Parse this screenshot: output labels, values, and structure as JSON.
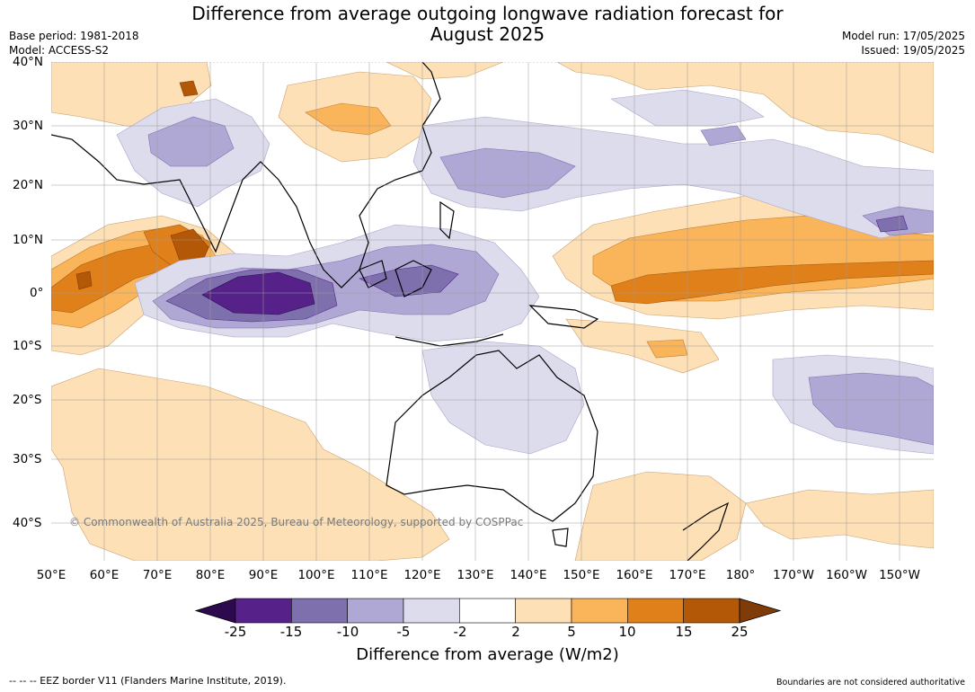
{
  "header": {
    "title_line1": "Difference from average outgoing longwave radiation forecast for",
    "title_line2": "August 2025",
    "base_period": "Base period: 1981-2018",
    "model": "Model: ACCESS-S2",
    "model_run": "Model run: 17/05/2025",
    "issued": "Issued: 19/05/2025"
  },
  "map": {
    "lat_labels": [
      "40°N",
      "30°N",
      "20°N",
      "10°N",
      "0°",
      "10°S",
      "20°S",
      "30°S",
      "40°S"
    ],
    "lon_labels": [
      "50°E",
      "60°E",
      "70°E",
      "80°E",
      "90°E",
      "100°E",
      "110°E",
      "120°E",
      "130°E",
      "140°E",
      "150°E",
      "160°E",
      "170°E",
      "180°",
      "170°W",
      "160°W",
      "150°W"
    ],
    "copyright": "© Commonwealth of Australia 2025, Bureau of Meteorology, supported by COSPPac"
  },
  "colorbar": {
    "tick_labels": [
      "-25",
      "-15",
      "-10",
      "-5",
      "-2",
      "2",
      "5",
      "10",
      "15",
      "25"
    ],
    "colors": [
      "#2d0a4e",
      "#56228a",
      "#7e6fad",
      "#b0a8d4",
      "#dddcec",
      "#ffffff",
      "#fde0b5",
      "#fab55b",
      "#e0801a",
      "#b35806",
      "#7f3b08"
    ],
    "title": "Difference from average (W/m2)"
  },
  "footer": {
    "eez_note": "--  --  -- EEZ border V11 (Flanders Marine Institute, 2019).",
    "boundaries_note": "Boundaries are not considered authoritative"
  }
}
